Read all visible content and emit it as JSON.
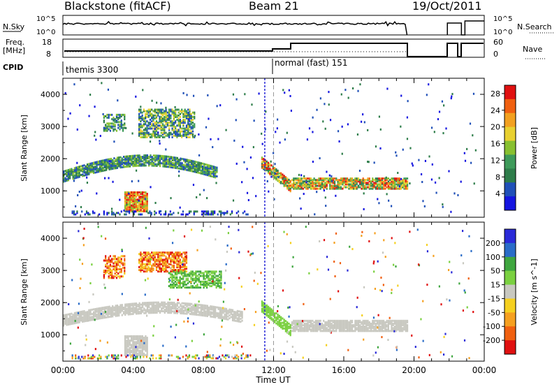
{
  "header": {
    "station": "Blackstone (fitACF)",
    "beam": "Beam 21",
    "date": "19/Oct/2011"
  },
  "panels": {
    "nsky": {
      "left_label": "N.Sky",
      "left_ticks": [
        "10^5",
        "10^0"
      ],
      "right_ticks": [
        "10^5",
        "10^0"
      ],
      "right_label": "N.Search"
    },
    "freq": {
      "left_label_1": "Freq.",
      "left_label_2": "[MHz]",
      "left_ticks": [
        "18",
        "8"
      ],
      "right_ticks": [
        "60",
        "0"
      ],
      "right_label": "Nave"
    },
    "cpid": {
      "label": "CPID",
      "segments": [
        "themis 3300",
        "normal (fast) 151"
      ]
    }
  },
  "colors": {
    "power_scale": [
      "#1515e0",
      "#2050b8",
      "#2e7d4a",
      "#3e9a5a",
      "#88c030",
      "#e8d030",
      "#f2a020",
      "#f06010",
      "#e01010"
    ],
    "velocity_scale": [
      "#2a2ad8",
      "#2a6cc8",
      "#3fa63f",
      "#7ad040",
      "#c8c8c0",
      "#f5d020",
      "#f5a020",
      "#f06010",
      "#e01010"
    ]
  },
  "chart_data": [
    {
      "type": "heatmap",
      "title": "Power",
      "xlabel": "",
      "ylabel": "Slant Range [km]",
      "x_ticks": [
        "00:00",
        "04:00",
        "08:00",
        "12:00",
        "16:00",
        "20:00",
        "00:00"
      ],
      "x_range_hours": [
        0,
        24
      ],
      "y_ticks": [
        1000,
        2000,
        3000,
        4000
      ],
      "ylim": [
        180,
        4500
      ],
      "colorbar": {
        "label": "Power [dB]",
        "ticks": [
          "4",
          "8",
          "12",
          "16",
          "20",
          "24",
          "28"
        ],
        "range": [
          0,
          30
        ]
      },
      "features": [
        {
          "name": "range_band_low_early",
          "t_start": 0.0,
          "t_end": 8.5,
          "range_start": 1400,
          "range_end": 2200,
          "level": "moderate"
        },
        {
          "name": "upper_patch_1",
          "t_start": 2.3,
          "t_end": 3.5,
          "range_start": 2900,
          "range_end": 3400,
          "level": "moderate"
        },
        {
          "name": "upper_patch_2",
          "t_start": 4.3,
          "t_end": 7.5,
          "range_start": 2700,
          "range_end": 3600,
          "level": "moderate"
        },
        {
          "name": "near_range_patch",
          "t_start": 3.5,
          "t_end": 4.8,
          "range_start": 400,
          "range_end": 1000,
          "level": "high"
        },
        {
          "name": "post_midday_band",
          "t_start": 11.3,
          "t_end": 19.6,
          "range_start": 1000,
          "range_end": 1500,
          "level": "high"
        }
      ]
    },
    {
      "type": "heatmap",
      "title": "Velocity",
      "xlabel": "Time UT",
      "ylabel": "Slant Range [km]",
      "x_ticks": [
        "00:00",
        "04:00",
        "08:00",
        "12:00",
        "16:00",
        "20:00",
        "00:00"
      ],
      "x_range_hours": [
        0,
        24
      ],
      "y_ticks": [
        1000,
        2000,
        3000,
        4000
      ],
      "ylim": [
        180,
        4500
      ],
      "colorbar": {
        "label": "Velocity [m s^-1]",
        "ticks": [
          "200",
          "100",
          "50",
          "15",
          "-15",
          "-50",
          "-100",
          "-200"
        ],
        "range": [
          -250,
          250
        ]
      },
      "features": [
        {
          "name": "ground_scatter_band",
          "t_start": 0.0,
          "t_end": 10.0,
          "range_start": 1300,
          "range_end": 2300,
          "velocity": "near zero"
        },
        {
          "name": "receding_patch",
          "t_start": 2.3,
          "t_end": 3.5,
          "range_start": 2800,
          "range_end": 3500,
          "velocity": "negative"
        },
        {
          "name": "receding_patch_2",
          "t_start": 4.3,
          "t_end": 7.0,
          "range_start": 3000,
          "range_end": 3600,
          "velocity": "negative"
        },
        {
          "name": "approaching_patch",
          "t_start": 6.0,
          "t_end": 9.0,
          "range_start": 2500,
          "range_end": 3000,
          "velocity": "positive"
        },
        {
          "name": "post_midday_band",
          "t_start": 11.3,
          "t_end": 19.6,
          "range_start": 1000,
          "range_end": 1500,
          "velocity": "near zero"
        }
      ]
    }
  ]
}
